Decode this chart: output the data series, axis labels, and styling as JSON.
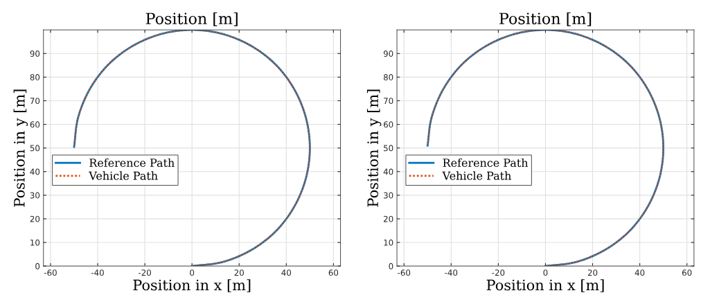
{
  "chart_data": [
    {
      "type": "line",
      "title": "Position [m]",
      "xlabel": "Position in x [m]",
      "ylabel": "Position in y [m]",
      "xlim": [
        -63,
        63
      ],
      "ylim": [
        0,
        100
      ],
      "xticks": [
        -60,
        -40,
        -20,
        0,
        20,
        40,
        60
      ],
      "yticks": [
        0,
        10,
        20,
        30,
        40,
        50,
        60,
        70,
        80,
        90
      ],
      "grid": true,
      "legend": "left",
      "series": [
        {
          "name": "Reference Path",
          "color": "#0072bd",
          "line_style": "solid",
          "x": [
            0,
            12.9,
            25,
            35.4,
            43.3,
            48.3,
            50,
            48.3,
            43.3,
            35.4,
            25,
            12.9,
            0,
            -12.9,
            -25,
            -35.4,
            -43.3,
            -48.3,
            -50
          ],
          "values": [
            0,
            1.7,
            6.7,
            14.6,
            25,
            37.1,
            50,
            62.9,
            75,
            85.4,
            93.3,
            98.3,
            100,
            98.3,
            93.3,
            85.4,
            75,
            62.9,
            50.5
          ]
        },
        {
          "name": "Vehicle Path",
          "color": "#d95319",
          "line_style": "dotted",
          "x": [
            0,
            12.9,
            25,
            35.4,
            43.3,
            48.3,
            50,
            48.3,
            43.3,
            35.4,
            25,
            12.9,
            0,
            -12.9,
            -25,
            -35.4,
            -43.3,
            -48.3,
            -50
          ],
          "values": [
            0,
            1.7,
            6.7,
            14.6,
            25,
            37.1,
            50,
            62.9,
            75,
            85.4,
            93.3,
            98.3,
            100,
            98.3,
            93.3,
            85.4,
            75,
            62.9,
            50.5
          ]
        }
      ]
    },
    {
      "type": "line",
      "title": "Position [m]",
      "xlabel": "Position in x [m]",
      "ylabel": "Position in y [m]",
      "xlim": [
        -63,
        63
      ],
      "ylim": [
        0,
        100
      ],
      "xticks": [
        -60,
        -40,
        -20,
        0,
        20,
        40,
        60
      ],
      "yticks": [
        0,
        10,
        20,
        30,
        40,
        50,
        60,
        70,
        80,
        90
      ],
      "grid": true,
      "legend": "left",
      "series": [
        {
          "name": "Reference Path",
          "color": "#0072bd",
          "line_style": "solid",
          "x": [
            0,
            12.9,
            25,
            35.4,
            43.3,
            48.3,
            50,
            48.3,
            43.3,
            35.4,
            25,
            12.9,
            0,
            -12.9,
            -25,
            -35.4,
            -43.3,
            -48.3,
            -50
          ],
          "values": [
            0,
            1.7,
            6.7,
            14.6,
            25,
            37.1,
            50,
            62.9,
            75,
            85.4,
            93.3,
            98.3,
            100,
            98.3,
            93.3,
            85.4,
            75,
            62.9,
            51
          ]
        },
        {
          "name": "Vehicle Path",
          "color": "#d95319",
          "line_style": "dotted",
          "x": [
            0,
            12.9,
            25,
            35.4,
            43.3,
            48.3,
            50,
            48.3,
            43.3,
            35.4,
            25,
            12.9,
            0,
            -12.9,
            -25,
            -35.4,
            -43.3,
            -48.3,
            -50
          ],
          "values": [
            0,
            1.7,
            6.7,
            14.6,
            25,
            37.1,
            50,
            62.9,
            75,
            85.4,
            93.3,
            98.3,
            100,
            98.3,
            93.3,
            85.4,
            75,
            62.9,
            51
          ]
        }
      ]
    }
  ]
}
